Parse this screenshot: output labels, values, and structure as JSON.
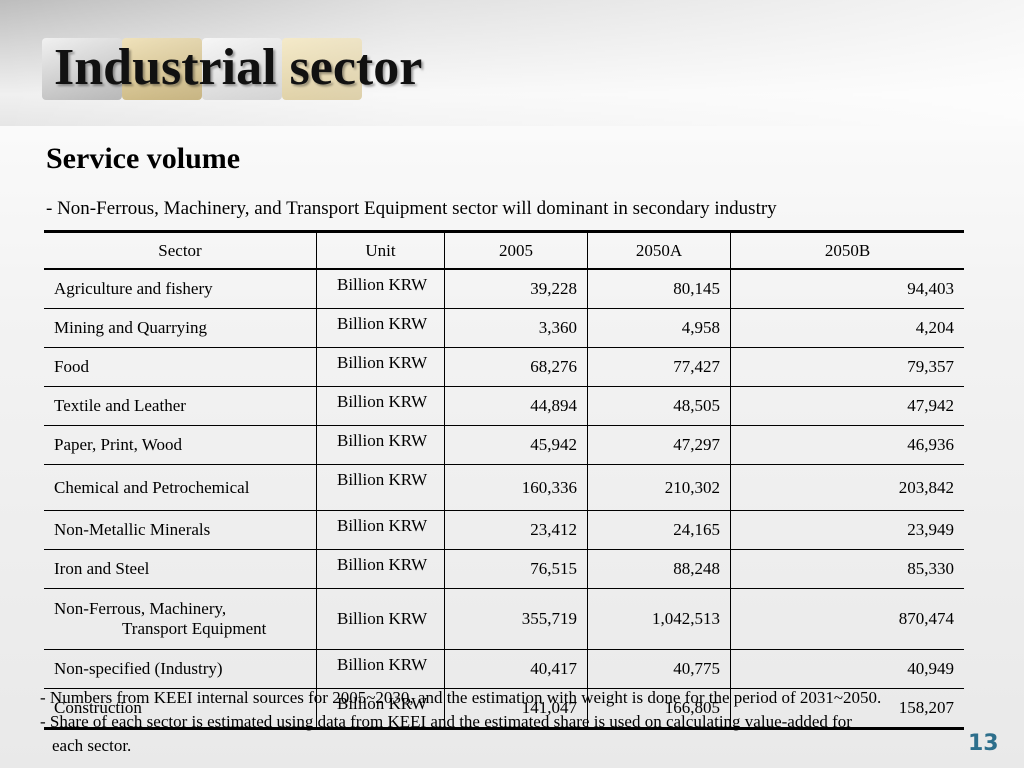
{
  "title": "Industrial sector",
  "subtitle": "Service volume",
  "lead": "-  Non-Ferrous, Machinery, and Transport Equipment sector will dominant in secondary industry",
  "table": {
    "headers": [
      "Sector",
      "Unit",
      "2005",
      "2050A",
      "2050B"
    ],
    "rows": [
      {
        "sector": "Agriculture and fishery",
        "unit": "Billion KRW",
        "v2005": "39,228",
        "v2050a": "80,145",
        "v2050b": "94,403"
      },
      {
        "sector": "Mining and Quarrying",
        "unit": "Billion KRW",
        "v2005": "3,360",
        "v2050a": "4,958",
        "v2050b": "4,204"
      },
      {
        "sector": "Food",
        "unit": "Billion KRW",
        "v2005": "68,276",
        "v2050a": "77,427",
        "v2050b": "79,357"
      },
      {
        "sector": "Textile and Leather",
        "unit": "Billion KRW",
        "v2005": "44,894",
        "v2050a": "48,505",
        "v2050b": "47,942"
      },
      {
        "sector": "Paper, Print, Wood",
        "unit": "Billion KRW",
        "v2005": "45,942",
        "v2050a": "47,297",
        "v2050b": "46,936"
      },
      {
        "sector": "Chemical and Petrochemical",
        "unit": "Billion KRW",
        "v2005": "160,336",
        "v2050a": "210,302",
        "v2050b": "203,842"
      },
      {
        "sector": "Non-Metallic Minerals",
        "unit": "Billion KRW",
        "v2005": "23,412",
        "v2050a": "24,165",
        "v2050b": "23,949"
      },
      {
        "sector": "Iron and Steel",
        "unit": "Billion KRW",
        "v2005": "76,515",
        "v2050a": "88,248",
        "v2050b": "85,330"
      },
      {
        "sector_line1": "Non-Ferrous, Machinery,",
        "sector_line2": "Transport Equipment",
        "unit": "Billion KRW",
        "v2005": "355,719",
        "v2050a": "1,042,513",
        "v2050b": "870,474"
      },
      {
        "sector": "Non-specified (Industry)",
        "unit": "Billion KRW",
        "v2005": "40,417",
        "v2050a": "40,775",
        "v2050b": "40,949"
      },
      {
        "sector": "Construction",
        "unit": "Billion KRW",
        "v2005": "141,047",
        "v2050a": "166,805",
        "v2050b": "158,207"
      }
    ]
  },
  "notes": {
    "note1": "- Numbers from KEEI internal sources for 2005~2030, and the estimation with weight is done for the period of 2031~2050.",
    "note2a": "- Share of each sector is estimated using data from KEEI and the estimated share is used on calculating value-added for",
    "note2b": "each sector."
  },
  "page_number": "13",
  "colors": {
    "page_number": "#2d6f8c",
    "text": "#000000"
  }
}
